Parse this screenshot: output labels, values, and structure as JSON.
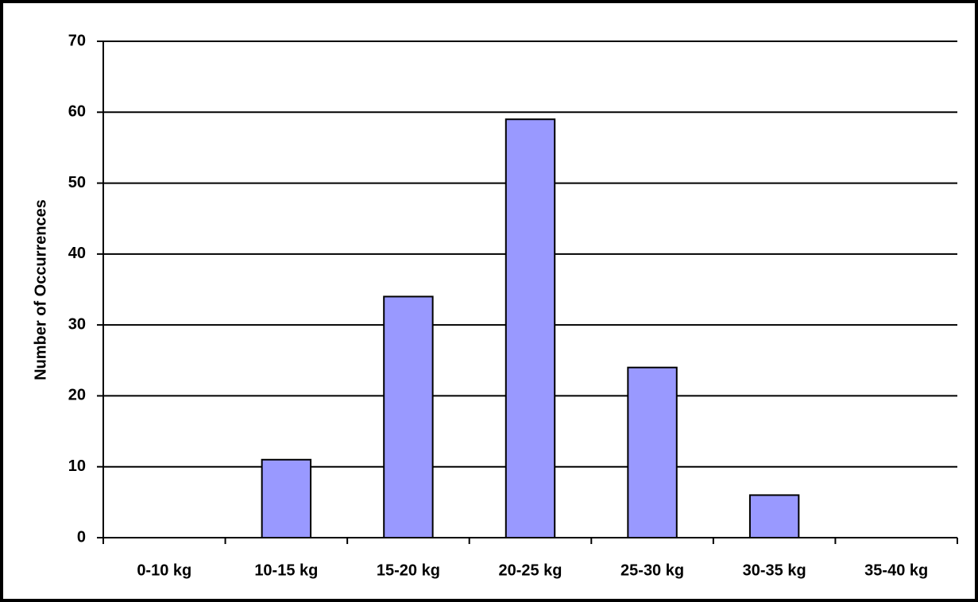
{
  "chart_data": {
    "type": "bar",
    "y_axis_label": "Number of Occurrences",
    "categories": [
      "0-10 kg",
      "10-15 kg",
      "15-20 kg",
      "20-25 kg",
      "25-30 kg",
      "30-35 kg",
      "35-40 kg"
    ],
    "values": [
      0,
      11,
      34,
      59,
      24,
      6,
      0
    ],
    "color": "#9999ff",
    "ylim": [
      0,
      70
    ],
    "yticks": [
      0,
      10,
      20,
      30,
      40,
      50,
      60,
      70
    ],
    "grid": true
  }
}
